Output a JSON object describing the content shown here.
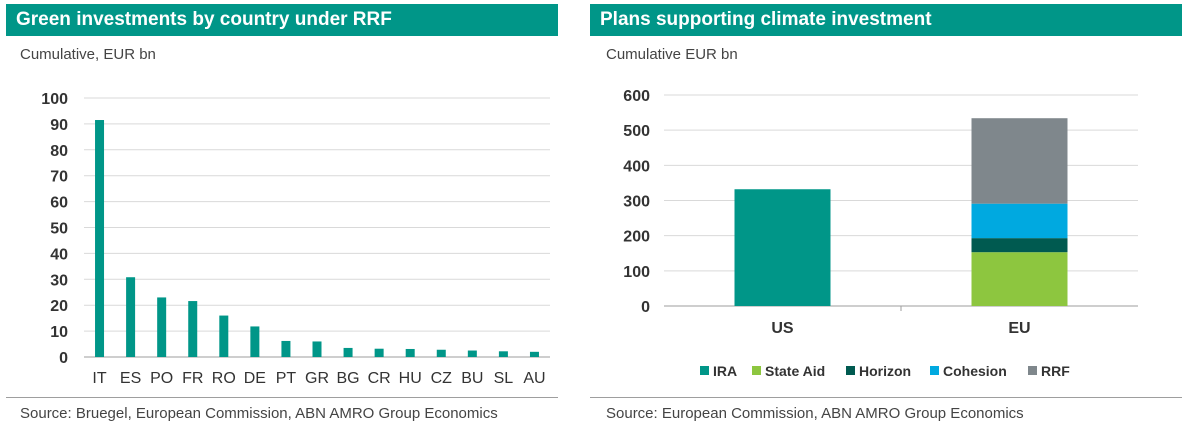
{
  "left": {
    "title": "Green investments by country under RRF",
    "subtitle": "Cumulative, EUR bn",
    "source": "Source: Bruegel, European Commission, ABN AMRO Group Economics"
  },
  "right": {
    "title": "Plans supporting climate investment",
    "subtitle": "Cumulative EUR bn",
    "source": "Source: European Commission, ABN AMRO Group Economics"
  },
  "chart_data": [
    {
      "type": "bar",
      "title": "Green investments by country under RRF",
      "subtitle": "Cumulative, EUR bn",
      "categories": [
        "IT",
        "ES",
        "PO",
        "FR",
        "RO",
        "DE",
        "PT",
        "GR",
        "BG",
        "CR",
        "HU",
        "CZ",
        "BU",
        "SL",
        "AU"
      ],
      "values": [
        91.5,
        30.8,
        23,
        21.6,
        16,
        11.8,
        6.2,
        6,
        3.5,
        3.2,
        3.1,
        2.8,
        2.5,
        2.2,
        2
      ],
      "ylim": [
        0,
        100
      ],
      "yticks": [
        0,
        10,
        20,
        30,
        40,
        50,
        60,
        70,
        80,
        90,
        100
      ],
      "grid": true,
      "color": "#009688"
    },
    {
      "type": "bar",
      "stacked": true,
      "title": "Plans supporting climate investment",
      "subtitle": "Cumulative EUR bn",
      "categories": [
        "US",
        "EU"
      ],
      "series": [
        {
          "name": "IRA",
          "values": [
            332,
            0
          ],
          "color": "#009688"
        },
        {
          "name": "State Aid",
          "values": [
            0,
            153
          ],
          "color": "#8dc63f"
        },
        {
          "name": "Horizon",
          "values": [
            0,
            40
          ],
          "color": "#005a50"
        },
        {
          "name": "Cohesion",
          "values": [
            0,
            98
          ],
          "color": "#00a9e0"
        },
        {
          "name": "RRF",
          "values": [
            0,
            243
          ],
          "color": "#7f878c"
        }
      ],
      "ylim": [
        0,
        600
      ],
      "yticks": [
        0,
        100,
        200,
        300,
        400,
        500,
        600
      ],
      "grid": true,
      "legend": "bottom"
    }
  ]
}
